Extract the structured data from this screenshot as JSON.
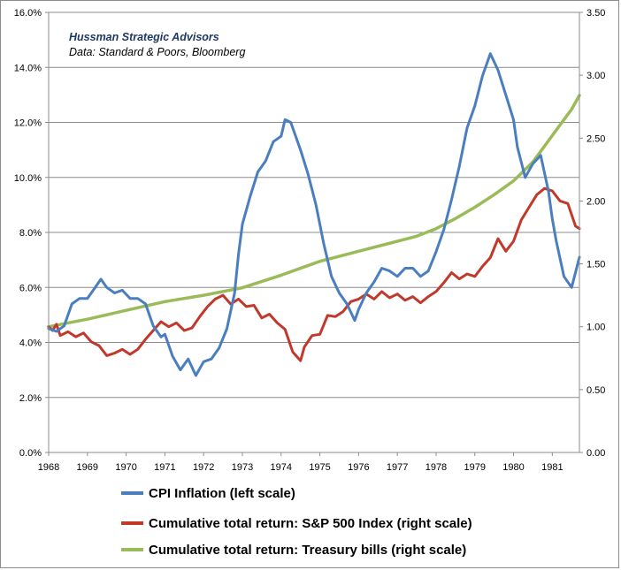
{
  "chart_data": {
    "type": "line",
    "title": "",
    "annotations": [
      "Hussman Strategic Advisors",
      "Data: Standard & Poors, Bloomberg"
    ],
    "x_ticks": [
      "1968",
      "1969",
      "1970",
      "1971",
      "1972",
      "1973",
      "1974",
      "1975",
      "1976",
      "1977",
      "1978",
      "1979",
      "1980",
      "1981"
    ],
    "xlim": [
      1968.0,
      1981.7
    ],
    "left_axis": {
      "ticks": [
        "0.0%",
        "2.0%",
        "4.0%",
        "6.0%",
        "8.0%",
        "10.0%",
        "12.0%",
        "14.0%",
        "16.0%"
      ],
      "ylim": [
        0,
        16
      ],
      "unit": "%"
    },
    "right_axis": {
      "ticks": [
        "0.00",
        "0.50",
        "1.00",
        "1.50",
        "2.00",
        "2.50",
        "3.00",
        "3.50"
      ],
      "ylim": [
        0,
        3.5
      ]
    },
    "grid": "horizontal",
    "legend_position": "bottom",
    "series": [
      {
        "name": "CPI Inflation (left scale)",
        "axis": "left",
        "color": "#4a7ebf",
        "x": [
          1968.0,
          1968.2,
          1968.4,
          1968.6,
          1968.8,
          1969.0,
          1969.2,
          1969.35,
          1969.5,
          1969.7,
          1969.9,
          1970.1,
          1970.3,
          1970.5,
          1970.7,
          1970.9,
          1971.0,
          1971.2,
          1971.4,
          1971.6,
          1971.8,
          1972.0,
          1972.2,
          1972.4,
          1972.6,
          1972.8,
          1972.9,
          1973.0,
          1973.2,
          1973.4,
          1973.6,
          1973.8,
          1974.0,
          1974.1,
          1974.25,
          1974.5,
          1974.7,
          1974.9,
          1975.1,
          1975.3,
          1975.5,
          1975.7,
          1975.9,
          1976.0,
          1976.2,
          1976.4,
          1976.6,
          1976.8,
          1977.0,
          1977.2,
          1977.4,
          1977.6,
          1977.8,
          1978.0,
          1978.2,
          1978.4,
          1978.6,
          1978.8,
          1979.0,
          1979.2,
          1979.4,
          1979.6,
          1979.8,
          1980.0,
          1980.1,
          1980.3,
          1980.5,
          1980.7,
          1980.9,
          1981.0,
          1981.1,
          1981.3,
          1981.5,
          1981.7
        ],
        "y": [
          4.5,
          4.4,
          4.6,
          5.4,
          5.6,
          5.6,
          6.0,
          6.3,
          6.0,
          5.8,
          5.9,
          5.6,
          5.6,
          5.4,
          4.6,
          4.2,
          4.3,
          3.5,
          3.0,
          3.4,
          2.8,
          3.3,
          3.4,
          3.8,
          4.5,
          5.8,
          7.2,
          8.3,
          9.3,
          10.2,
          10.6,
          11.3,
          11.5,
          12.1,
          12.0,
          11.0,
          10.1,
          9.0,
          7.6,
          6.4,
          5.8,
          5.4,
          4.8,
          5.2,
          5.8,
          6.2,
          6.7,
          6.6,
          6.4,
          6.7,
          6.7,
          6.4,
          6.6,
          7.3,
          8.1,
          9.2,
          10.4,
          11.8,
          12.6,
          13.7,
          14.5,
          13.9,
          13.0,
          12.1,
          11.1,
          10.0,
          10.5,
          10.8,
          9.5,
          8.5,
          7.7,
          6.4,
          6.0,
          7.1
        ]
      },
      {
        "name": "Cumulative total return: S&P 500 Index (right scale)",
        "axis": "right",
        "color": "#c0392b",
        "x": [
          1968.0,
          1968.1,
          1968.2,
          1968.3,
          1968.5,
          1968.7,
          1968.9,
          1969.1,
          1969.3,
          1969.5,
          1969.7,
          1969.9,
          1970.1,
          1970.3,
          1970.5,
          1970.7,
          1970.9,
          1971.1,
          1971.3,
          1971.5,
          1971.7,
          1971.9,
          1972.1,
          1972.3,
          1972.5,
          1972.7,
          1972.9,
          1973.1,
          1973.3,
          1973.5,
          1973.7,
          1973.9,
          1974.1,
          1974.3,
          1974.5,
          1974.6,
          1974.8,
          1975.0,
          1975.2,
          1975.4,
          1975.6,
          1975.8,
          1976.0,
          1976.2,
          1976.4,
          1976.6,
          1976.8,
          1977.0,
          1977.2,
          1977.4,
          1977.6,
          1977.8,
          1978.0,
          1978.2,
          1978.4,
          1978.6,
          1978.8,
          1979.0,
          1979.2,
          1979.4,
          1979.6,
          1979.8,
          1980.0,
          1980.2,
          1980.4,
          1980.6,
          1980.8,
          1981.0,
          1981.2,
          1981.4,
          1981.6,
          1981.7
        ],
        "y": [
          1.0,
          0.97,
          1.02,
          0.93,
          0.96,
          0.92,
          0.95,
          0.88,
          0.85,
          0.77,
          0.79,
          0.82,
          0.78,
          0.82,
          0.9,
          0.97,
          1.04,
          1.0,
          1.03,
          0.97,
          0.99,
          1.08,
          1.16,
          1.22,
          1.25,
          1.18,
          1.22,
          1.16,
          1.17,
          1.07,
          1.1,
          1.03,
          0.98,
          0.8,
          0.73,
          0.84,
          0.93,
          0.94,
          1.09,
          1.08,
          1.12,
          1.2,
          1.22,
          1.26,
          1.22,
          1.28,
          1.23,
          1.26,
          1.21,
          1.24,
          1.19,
          1.24,
          1.28,
          1.35,
          1.43,
          1.38,
          1.42,
          1.4,
          1.48,
          1.55,
          1.7,
          1.6,
          1.68,
          1.85,
          1.95,
          2.05,
          2.1,
          2.08,
          2.0,
          1.98,
          1.8,
          1.78
        ]
      },
      {
        "name": "Cumulative total return: Treasury bills (right scale)",
        "axis": "right",
        "color": "#9bbb59",
        "x": [
          1968.0,
          1969.0,
          1970.0,
          1971.0,
          1972.0,
          1973.0,
          1974.0,
          1975.0,
          1976.0,
          1977.0,
          1977.5,
          1978.0,
          1978.5,
          1979.0,
          1979.5,
          1980.0,
          1980.5,
          1981.0,
          1981.5,
          1981.7
        ],
        "y": [
          1.0,
          1.06,
          1.13,
          1.2,
          1.25,
          1.31,
          1.41,
          1.52,
          1.6,
          1.68,
          1.72,
          1.78,
          1.86,
          1.95,
          2.05,
          2.16,
          2.31,
          2.52,
          2.73,
          2.84
        ]
      }
    ]
  }
}
